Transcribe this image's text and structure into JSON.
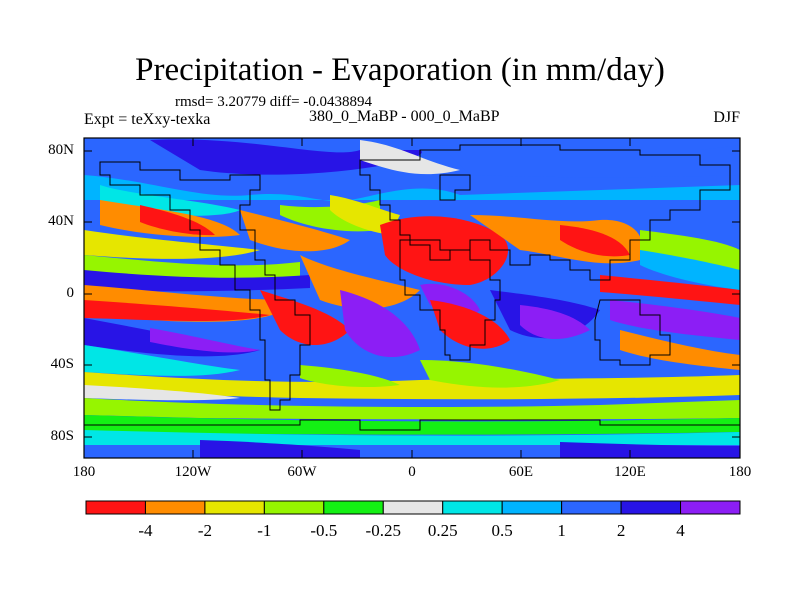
{
  "title": "Precipitation - Evaporation (in mm/day)",
  "stats": "rmsd= 3.20779 diff= -0.0438894",
  "experiment": "Expt = teXxy-texka",
  "difference_label": "380_0_MaBP - 000_0_MaBP",
  "season": "DJF",
  "map": {
    "lat_labels": [
      "80N",
      "40N",
      "0",
      "40S",
      "80S"
    ],
    "lon_labels": [
      "180",
      "120W",
      "60W",
      "0",
      "60E",
      "120E",
      "180"
    ],
    "background_color": "#2b66ff"
  },
  "colorbar": {
    "colors": [
      "#ff1414",
      "#ff8c00",
      "#e6e600",
      "#96f500",
      "#14f014",
      "#e6e6e6",
      "#00e6e6",
      "#00b4ff",
      "#2b66ff",
      "#2814e6",
      "#8c1ef5"
    ],
    "labels": [
      "-4",
      "-2",
      "-1",
      "-0.5",
      "-0.25",
      "0.25",
      "0.5",
      "1",
      "2",
      "4"
    ]
  }
}
